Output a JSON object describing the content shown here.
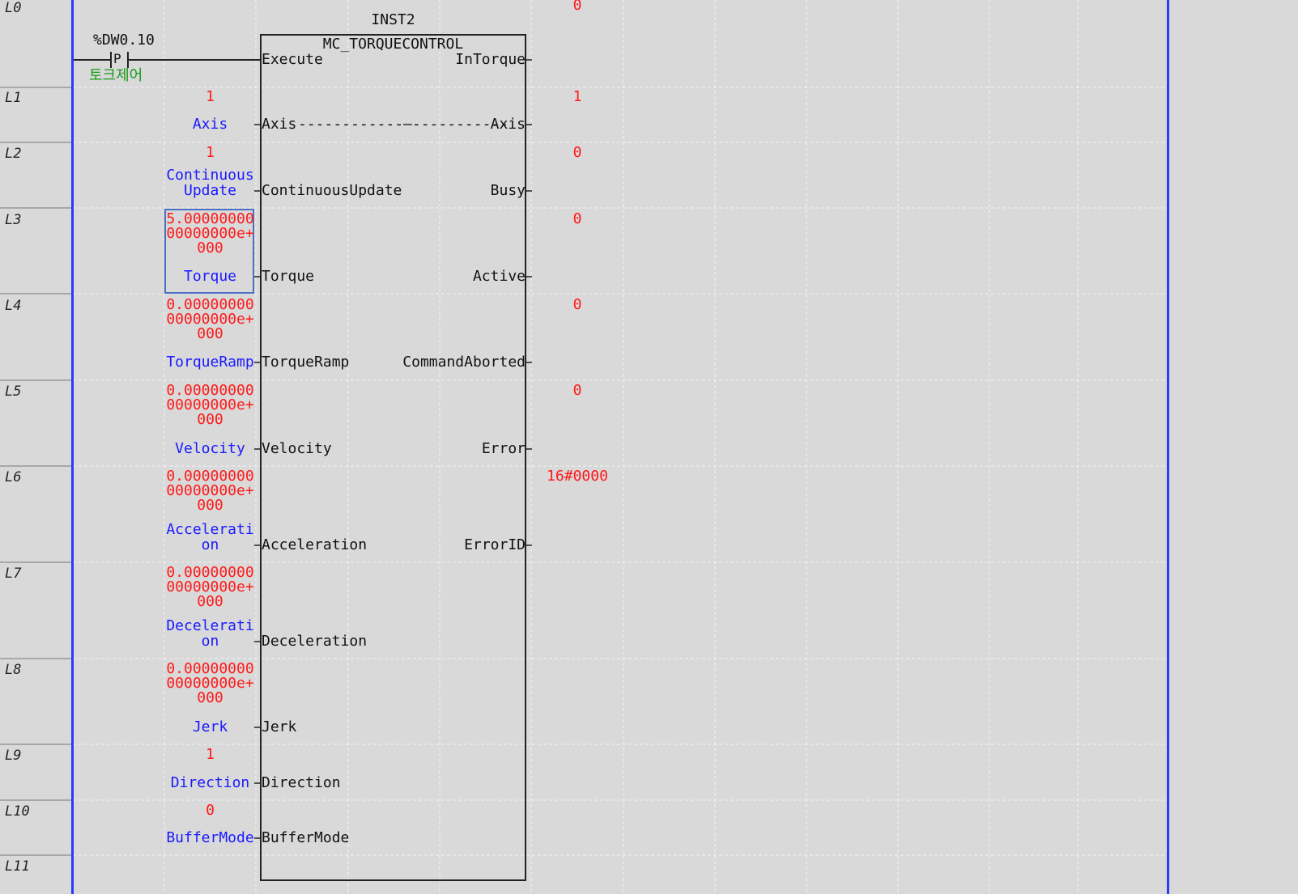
{
  "line_labels": [
    "L0",
    "L1",
    "L2",
    "L3",
    "L4",
    "L5",
    "L6",
    "L7",
    "L8",
    "L9",
    "L10",
    "L11"
  ],
  "fb": {
    "instance": "INST2",
    "type": "MC_TORQUECONTROL",
    "inputs": {
      "execute": "Execute",
      "axis": "Axis",
      "continuous_update": "ContinuousUpdate",
      "torque": "Torque",
      "torque_ramp": "TorqueRamp",
      "velocity": "Velocity",
      "acceleration": "Acceleration",
      "deceleration": "Deceleration",
      "jerk": "Jerk",
      "direction": "Direction",
      "buffer_mode": "BufferMode"
    },
    "outputs": {
      "in_torque": "InTorque",
      "axis": "Axis",
      "busy": "Busy",
      "active": "Active",
      "command_aborted": "CommandAborted",
      "error": "Error",
      "error_id": "ErrorID"
    },
    "axis_link": "------------—-----------"
  },
  "contact": {
    "address": "%DW0.10",
    "symbol": "P",
    "comment": "토크제어"
  },
  "input_vars": {
    "axis": {
      "value": "1",
      "name": "Axis"
    },
    "continuous_update": {
      "value": "1",
      "name1": "Continuous",
      "name2": "Update"
    },
    "torque": {
      "value1": "5.00000000",
      "value2": "00000000e+",
      "value3": "000",
      "name": "Torque"
    },
    "torque_ramp": {
      "value1": "0.00000000",
      "value2": "00000000e+",
      "value3": "000",
      "name": "TorqueRamp"
    },
    "velocity": {
      "value1": "0.00000000",
      "value2": "00000000e+",
      "value3": "000",
      "name": "Velocity"
    },
    "acceleration": {
      "value1": "0.00000000",
      "value2": "00000000e+",
      "value3": "000",
      "name1": "Accelerati",
      "name2": "on"
    },
    "deceleration": {
      "value1": "0.00000000",
      "value2": "00000000e+",
      "value3": "000",
      "name1": "Decelerati",
      "name2": "on"
    },
    "jerk": {
      "value1": "0.00000000",
      "value2": "00000000e+",
      "value3": "000",
      "name": "Jerk"
    },
    "direction": {
      "value": "1",
      "name": "Direction"
    },
    "buffer_mode": {
      "value": "0",
      "name": "BufferMode"
    }
  },
  "output_values": {
    "in_torque": "0",
    "axis": "1",
    "busy": "0",
    "active": "0",
    "command_aborted": "0",
    "error": "0",
    "error_id": "16#0000"
  },
  "colors": {
    "background": "#d9d9d9",
    "rail": "#2a3aff",
    "value": "#ff1a1a",
    "variable": "#1a1aff",
    "comment": "#1a9a1a",
    "selection": "#4a6fc4"
  }
}
